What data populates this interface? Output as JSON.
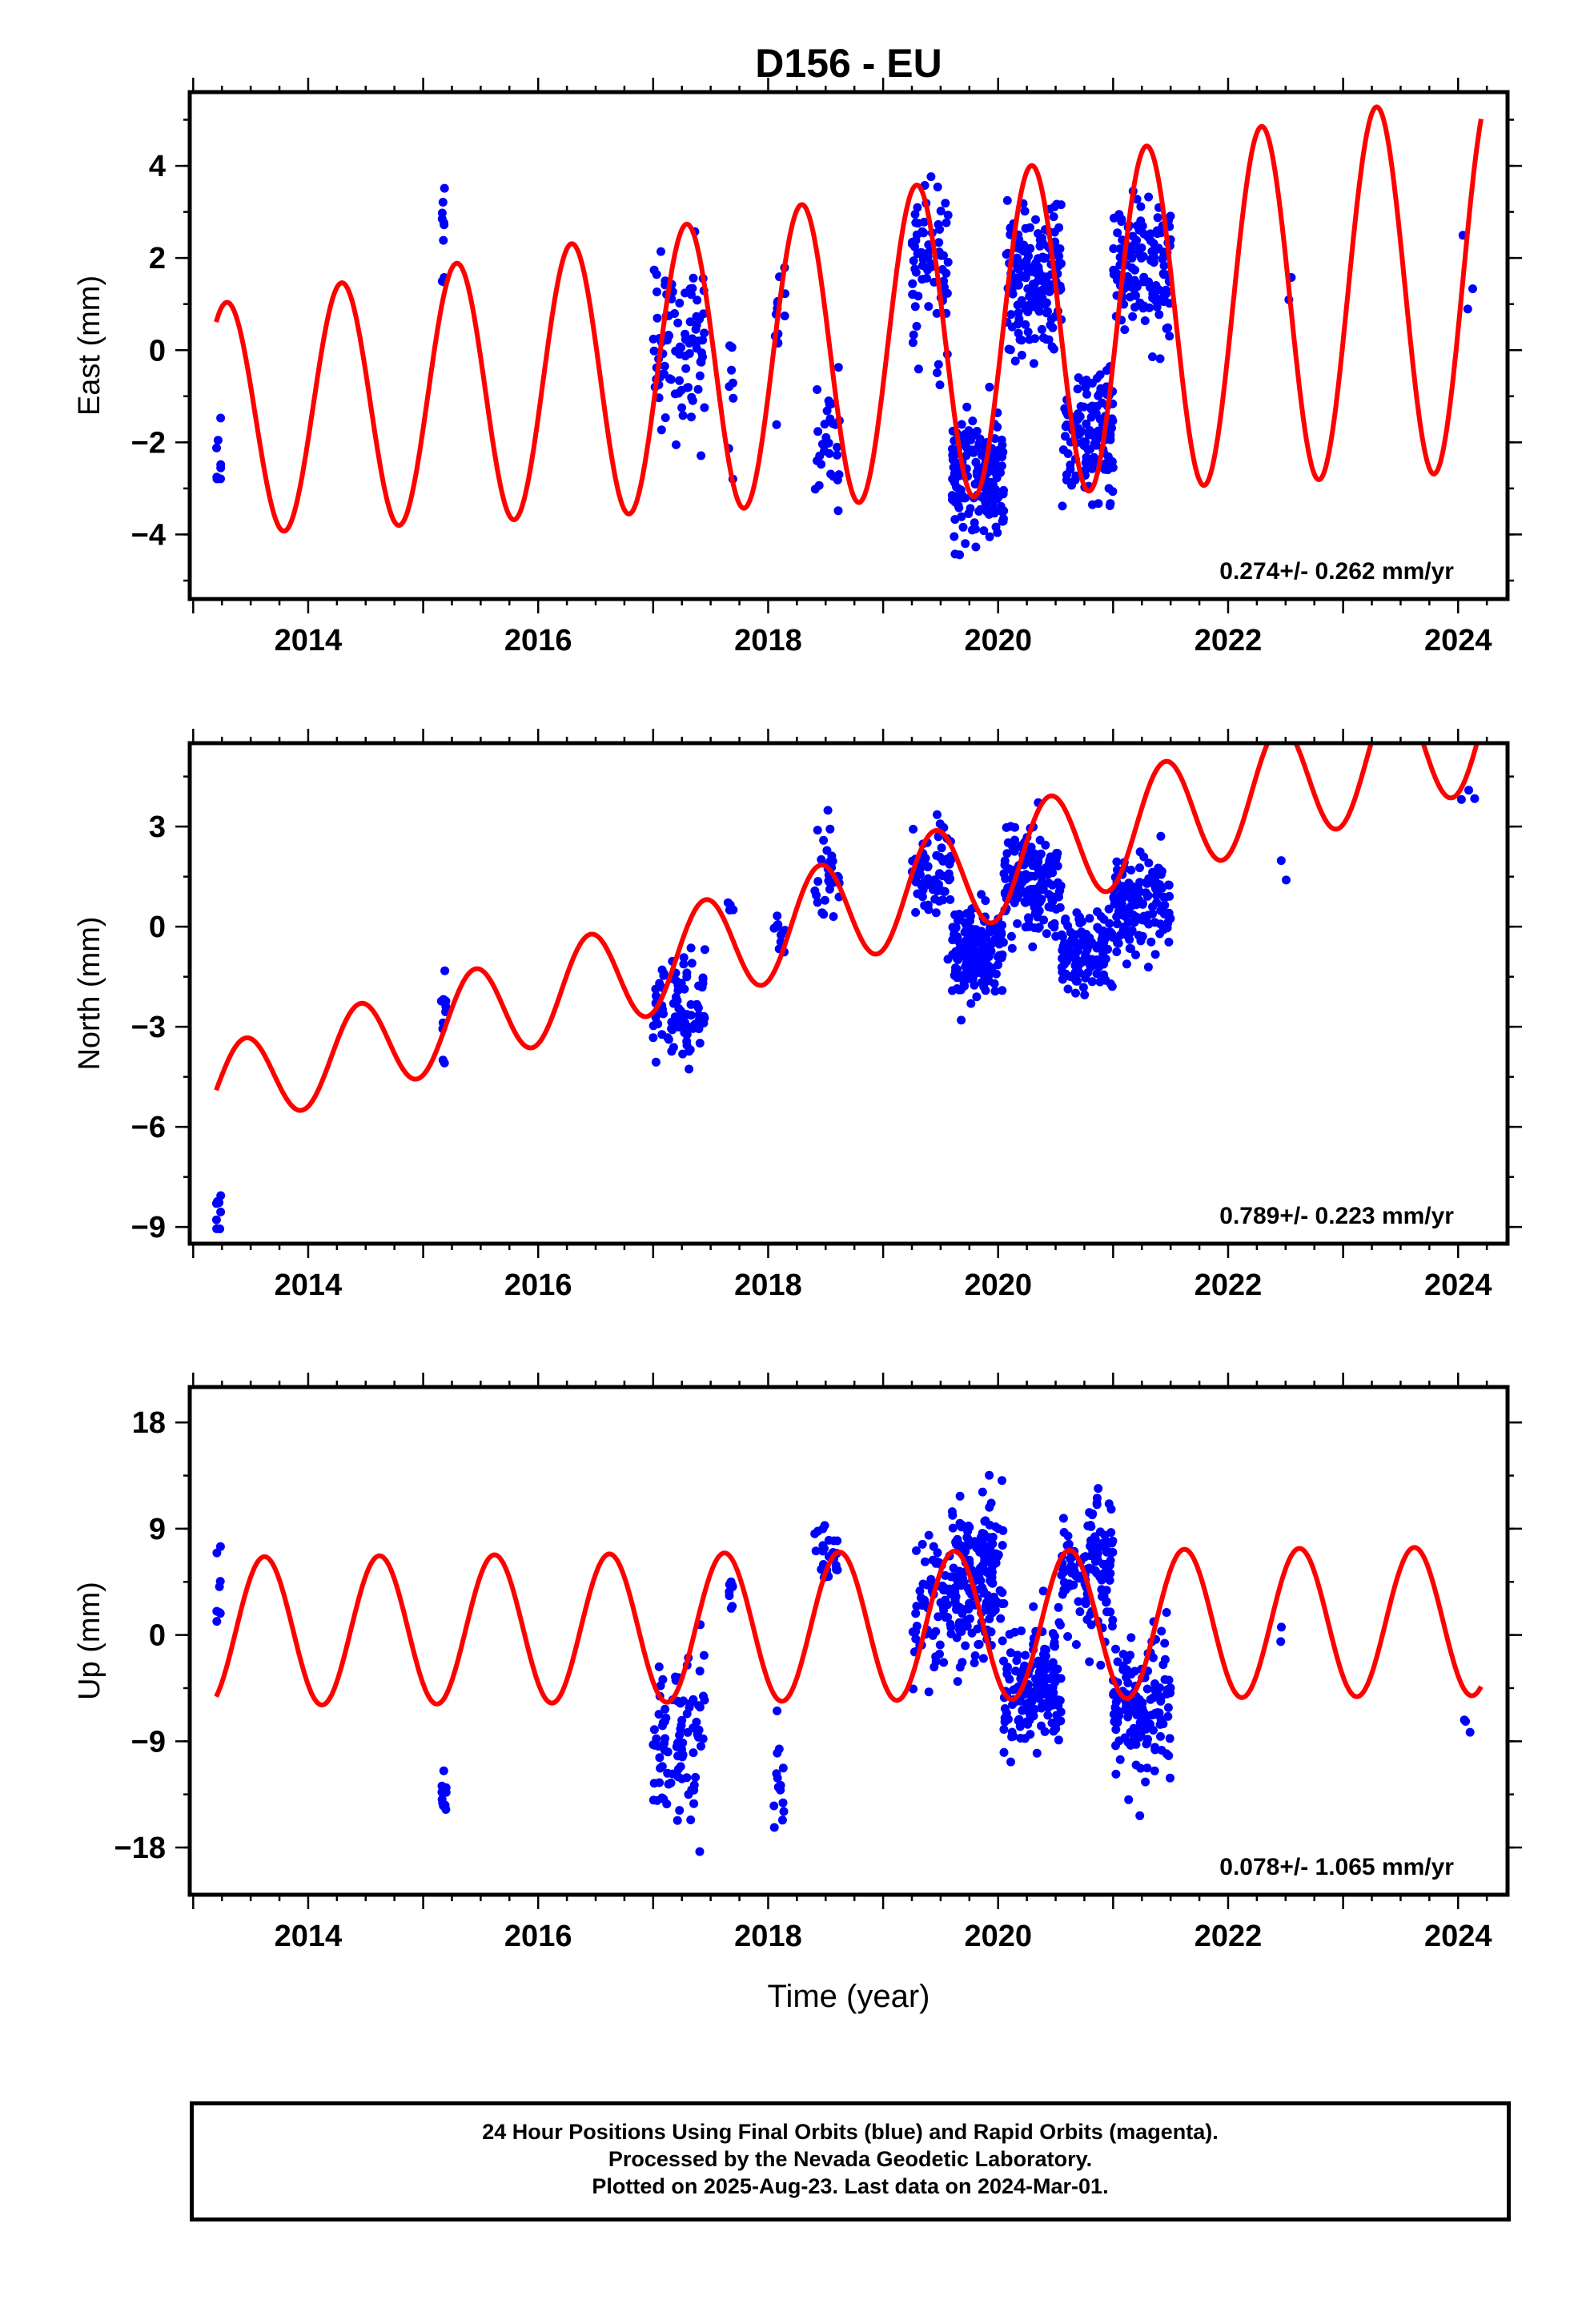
{
  "title": "D156 - EU",
  "xlabel": "Time (year)",
  "caption_lines": [
    "24 Hour Positions Using Final Orbits (blue) and Rapid Orbits (magenta).",
    "Processed by the Nevada Geodetic Laboratory.",
    "Plotted on 2025-Aug-23. Last data on 2024-Mar-01."
  ],
  "colors": {
    "data": "#0000ff",
    "model": "#ff0000",
    "axis": "#000000"
  },
  "chart_data": [
    {
      "type": "scatter",
      "component": "east",
      "ylabel": "East (mm)",
      "xlim": [
        2012.97,
        2024.43
      ],
      "ylim": [
        -5.4,
        5.6
      ],
      "xticks": [
        2014,
        2016,
        2018,
        2020,
        2022,
        2024
      ],
      "yticks": [
        -4,
        -2,
        0,
        2,
        4
      ],
      "ytick_labels": [
        "−4",
        "−2",
        "0",
        "2",
        "4"
      ],
      "rate_label": "0.274+/- 0.262 mm/yr",
      "model": {
        "offset": -1.5,
        "trend": 0.274,
        "amplitude": 2.5,
        "amplitude_growth": 0.15,
        "phase_peak": 0.29,
        "t0": 2013.2
      },
      "clusters": [
        {
          "x": [
            2013.2,
            2013.24
          ],
          "center": -2.5,
          "spread": 1.0,
          "n": 8
        },
        {
          "x": [
            2015.15,
            2015.2
          ],
          "center": 2.5,
          "spread": 1.0,
          "n": 10
        },
        {
          "x": [
            2017.0,
            2017.45
          ],
          "center": 0.2,
          "spread": 2.0,
          "n": 90
        },
        {
          "x": [
            2017.65,
            2017.7
          ],
          "center": -1.0,
          "spread": 1.5,
          "n": 8
        },
        {
          "x": [
            2018.05,
            2018.15
          ],
          "center": 0.5,
          "spread": 1.6,
          "n": 14
        },
        {
          "x": [
            2018.4,
            2018.62
          ],
          "center": -2.2,
          "spread": 1.2,
          "n": 30
        },
        {
          "x": [
            2019.25,
            2019.6
          ],
          "center": 1.8,
          "spread": 1.6,
          "n": 70
        },
        {
          "x": [
            2019.6,
            2020.05
          ],
          "center": -2.8,
          "spread": 1.3,
          "n": 180
        },
        {
          "x": [
            2020.05,
            2020.55
          ],
          "center": 1.5,
          "spread": 1.4,
          "n": 170
        },
        {
          "x": [
            2020.55,
            2021.0
          ],
          "center": -1.8,
          "spread": 1.3,
          "n": 130
        },
        {
          "x": [
            2021.0,
            2021.5
          ],
          "center": 1.8,
          "spread": 1.4,
          "n": 140
        },
        {
          "x": [
            2022.45,
            2022.55
          ],
          "center": 1.7,
          "spread": 0.9,
          "n": 2
        },
        {
          "x": [
            2024.0,
            2024.15
          ],
          "center": 1.5,
          "spread": 2.0,
          "n": 3
        }
      ]
    },
    {
      "type": "scatter",
      "component": "north",
      "ylabel": "North (mm)",
      "xlim": [
        2012.97,
        2024.43
      ],
      "ylim": [
        -9.5,
        5.5
      ],
      "xticks": [
        2014,
        2016,
        2018,
        2020,
        2022,
        2024
      ],
      "yticks": [
        -9,
        -6,
        -3,
        0,
        3
      ],
      "ytick_labels": [
        "−9",
        "−6",
        "−3",
        "0",
        "3"
      ],
      "rate_label": "0.789+/- 0.223 mm/yr",
      "model": {
        "offset": -4.9,
        "trend": 0.789,
        "amplitude": 1.3,
        "amplitude_growth": 0.05,
        "phase_peak": 0.45,
        "t0": 2013.2
      },
      "clusters": [
        {
          "x": [
            2013.2,
            2013.24
          ],
          "center": -8.6,
          "spread": 0.6,
          "n": 8
        },
        {
          "x": [
            2015.15,
            2015.2
          ],
          "center": -2.5,
          "spread": 1.6,
          "n": 10
        },
        {
          "x": [
            2017.0,
            2017.45
          ],
          "center": -2.4,
          "spread": 1.4,
          "n": 90
        },
        {
          "x": [
            2017.65,
            2017.7
          ],
          "center": 0.6,
          "spread": 0.3,
          "n": 4
        },
        {
          "x": [
            2018.05,
            2018.15
          ],
          "center": 0.0,
          "spread": 0.6,
          "n": 14
        },
        {
          "x": [
            2018.4,
            2018.62
          ],
          "center": 1.4,
          "spread": 1.2,
          "n": 30
        },
        {
          "x": [
            2019.25,
            2019.6
          ],
          "center": 1.6,
          "spread": 1.3,
          "n": 70
        },
        {
          "x": [
            2019.6,
            2020.05
          ],
          "center": -0.8,
          "spread": 1.2,
          "n": 180
        },
        {
          "x": [
            2020.05,
            2020.55
          ],
          "center": 1.3,
          "spread": 1.4,
          "n": 170
        },
        {
          "x": [
            2020.55,
            2021.0
          ],
          "center": -0.8,
          "spread": 1.2,
          "n": 130
        },
        {
          "x": [
            2021.0,
            2021.5
          ],
          "center": 0.6,
          "spread": 1.3,
          "n": 140
        },
        {
          "x": [
            2022.45,
            2022.55
          ],
          "center": 1.8,
          "spread": 0.5,
          "n": 2
        },
        {
          "x": [
            2024.0,
            2024.15
          ],
          "center": 4.0,
          "spread": 0.3,
          "n": 3
        }
      ]
    },
    {
      "type": "scatter",
      "component": "up",
      "ylabel": "Up (mm)",
      "xlim": [
        2012.97,
        2024.43
      ],
      "ylim": [
        -22,
        21
      ],
      "xticks": [
        2014,
        2016,
        2018,
        2020,
        2022,
        2024
      ],
      "yticks": [
        -18,
        -9,
        0,
        9,
        18
      ],
      "ytick_labels": [
        "−18",
        "−9",
        "0",
        "9",
        "18"
      ],
      "rate_label": "0.078+/- 1.065 mm/yr",
      "model": {
        "offset": 0.3,
        "trend": 0.078,
        "amplitude": 6.3,
        "amplitude_growth": 0.0,
        "phase_peak": 0.62,
        "t0": 2013.2
      },
      "clusters": [
        {
          "x": [
            2013.2,
            2013.24
          ],
          "center": 3.0,
          "spread": 3.5,
          "n": 8
        },
        {
          "x": [
            2015.15,
            2015.2
          ],
          "center": -14.0,
          "spread": 3.0,
          "n": 10
        },
        {
          "x": [
            2017.0,
            2017.45
          ],
          "center": -8.0,
          "spread": 7.0,
          "n": 90
        },
        {
          "x": [
            2017.65,
            2017.7
          ],
          "center": 2.5,
          "spread": 4.0,
          "n": 8
        },
        {
          "x": [
            2018.05,
            2018.15
          ],
          "center": -13.0,
          "spread": 4.0,
          "n": 14
        },
        {
          "x": [
            2018.4,
            2018.62
          ],
          "center": 7.0,
          "spread": 3.0,
          "n": 30
        },
        {
          "x": [
            2019.25,
            2019.6
          ],
          "center": 2.0,
          "spread": 5.5,
          "n": 70
        },
        {
          "x": [
            2019.6,
            2020.05
          ],
          "center": 5.0,
          "spread": 5.5,
          "n": 180
        },
        {
          "x": [
            2020.05,
            2020.55
          ],
          "center": -5.0,
          "spread": 5.0,
          "n": 170
        },
        {
          "x": [
            2020.55,
            2021.0
          ],
          "center": 5.5,
          "spread": 5.0,
          "n": 130
        },
        {
          "x": [
            2021.0,
            2021.5
          ],
          "center": -6.0,
          "spread": 5.0,
          "n": 140
        },
        {
          "x": [
            2022.45,
            2022.55
          ],
          "center": 0.0,
          "spread": 4.0,
          "n": 2
        },
        {
          "x": [
            2024.0,
            2024.15
          ],
          "center": -7.5,
          "spread": 1.0,
          "n": 3
        }
      ]
    }
  ]
}
